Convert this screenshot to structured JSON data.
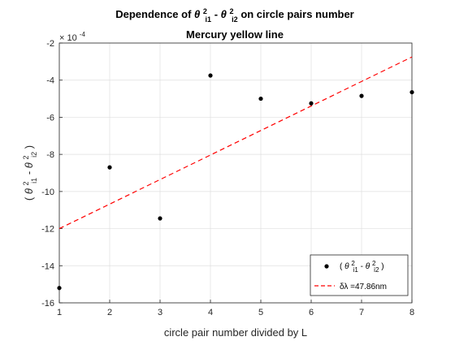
{
  "chart_data": {
    "type": "scatter",
    "title": {
      "prefix": "Dependence of ",
      "theta": "θ",
      "sup1": "2",
      "sub1": "i1",
      "minus": "-",
      "sup2": "2",
      "sub2": "i2",
      "suffix": " on circle pairs number"
    },
    "subtitle": "Mercury yellow line",
    "xlabel": "circle pair number divided by L",
    "ylabel": {
      "open": "(",
      "theta": "θ",
      "sup1": "2",
      "sub1": "i1",
      "minus": "-",
      "sup2": "2",
      "sub2": "i2",
      "close": ")"
    },
    "y_exponent": {
      "base": "× 10",
      "power": "-4"
    },
    "xlim": [
      1,
      8
    ],
    "ylim": [
      -16,
      -2
    ],
    "x_ticks": [
      1,
      2,
      3,
      4,
      5,
      6,
      7,
      8
    ],
    "y_ticks": [
      -16,
      -14,
      -12,
      -10,
      -8,
      -6,
      -4,
      -2
    ],
    "grid": true,
    "legend_position": "bottom-right",
    "series": [
      {
        "kind": "points",
        "color": "#000000",
        "marker": "dot",
        "x": [
          1,
          2,
          3,
          4,
          5,
          6,
          7,
          8
        ],
        "y": [
          -15.2,
          -8.7,
          -11.45,
          -3.75,
          -5.0,
          -5.25,
          -4.85,
          -4.65
        ]
      },
      {
        "kind": "line",
        "name": "δλ =47.86nm",
        "color": "#ff0000",
        "style": "dashed",
        "x": [
          1,
          8
        ],
        "y": [
          -12.0,
          -2.75
        ]
      }
    ],
    "legend": {
      "points_label": {
        "open": "(",
        "theta": "θ",
        "sup1": "2",
        "sub1": "i1",
        "minus": "-",
        "sup2": "2",
        "sub2": "i2",
        "close": ")"
      },
      "line_label": "δλ =47.86nm"
    }
  }
}
